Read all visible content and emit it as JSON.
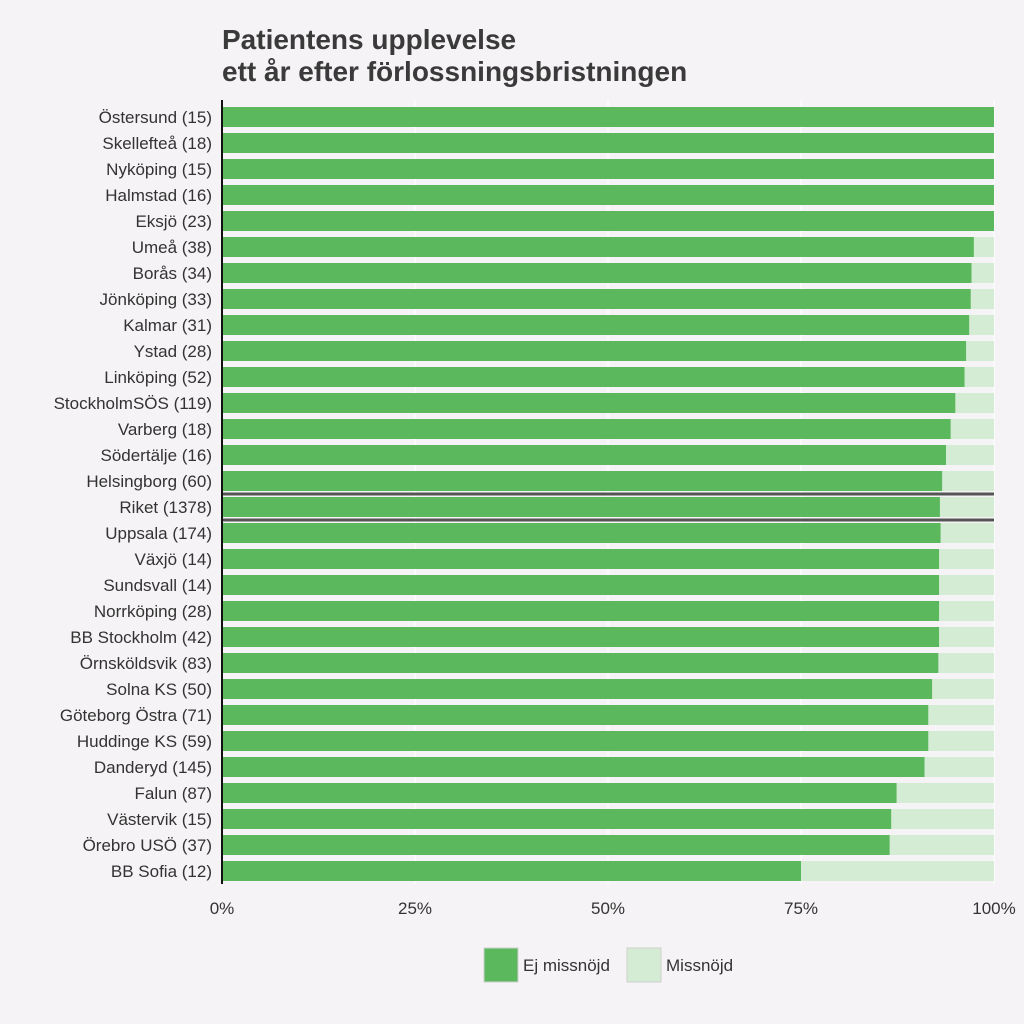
{
  "chart_data": {
    "type": "bar",
    "orientation": "horizontal",
    "stacked": true,
    "percent_scale": true,
    "title_lines": [
      "Patientens upplevelse",
      "ett år efter förlossningsbristningen"
    ],
    "xlabel": "",
    "ylabel": "",
    "xlim": [
      0,
      100
    ],
    "x_ticks": [
      "0%",
      "25%",
      "50%",
      "75%",
      "100%"
    ],
    "x_tick_values": [
      0,
      25,
      50,
      75,
      100
    ],
    "grid": true,
    "legend_position": "bottom",
    "highlighted_category": "Riket (1378)",
    "categories": [
      "Östersund (15)",
      "Skellefteå (18)",
      "Nyköping (15)",
      "Halmstad (16)",
      "Eksjö (23)",
      "Umeå (38)",
      "Borås (34)",
      "Jönköping (33)",
      "Kalmar (31)",
      "Ystad (28)",
      "Linköping (52)",
      "StockholmSÖS (119)",
      "Varberg (18)",
      "Södertälje (16)",
      "Helsingborg (60)",
      "Riket (1378)",
      "Uppsala (174)",
      "Växjö (14)",
      "Sundsvall (14)",
      "Norrköping (28)",
      "BB Stockholm (42)",
      "Örnsköldsvik (83)",
      "Solna KS (50)",
      "Göteborg Östra (71)",
      "Huddinge KS (59)",
      "Danderyd (145)",
      "Falun (87)",
      "Västervik (15)",
      "Örebro USÖ (37)",
      "BB Sofia (12)"
    ],
    "series": [
      {
        "name": "Ej missnöjd",
        "color": "#5cb85c",
        "values": [
          100,
          100,
          100,
          100,
          100,
          97.4,
          97.1,
          97.0,
          96.8,
          96.4,
          96.2,
          95.0,
          94.4,
          93.8,
          93.3,
          93.0,
          93.1,
          92.9,
          92.9,
          92.9,
          92.9,
          92.8,
          92.0,
          91.5,
          91.5,
          91.0,
          87.4,
          86.7,
          86.5,
          75.0
        ]
      },
      {
        "name": "Missnöjd",
        "color": "#d3ecd3",
        "values": [
          0,
          0,
          0,
          0,
          0,
          2.6,
          2.9,
          3.0,
          3.2,
          3.6,
          3.8,
          5.0,
          5.6,
          6.2,
          6.7,
          7.0,
          6.9,
          7.1,
          7.1,
          7.1,
          7.1,
          7.2,
          8.0,
          8.5,
          8.5,
          9.0,
          12.6,
          13.3,
          13.5,
          25.0
        ]
      }
    ]
  },
  "colors": {
    "background": "#f5f3f5",
    "grid": "#ffffff",
    "text": "#333333",
    "highlight_line": "#555555"
  }
}
